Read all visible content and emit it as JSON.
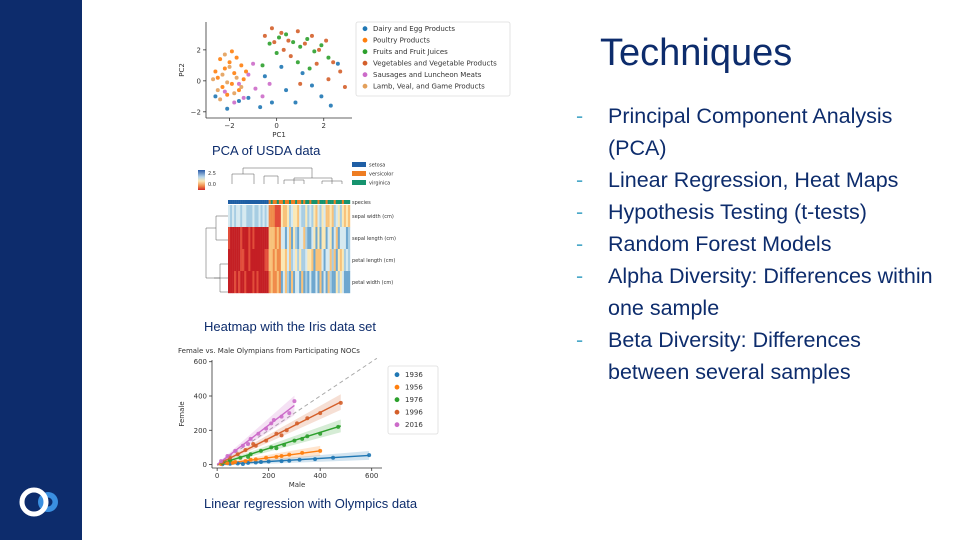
{
  "slide": {
    "title": "Techniques",
    "bullets": [
      {
        "dash": "-",
        "text": "Principal Component Analysis (PCA)"
      },
      {
        "dash": "-",
        "text": "Linear Regression, Heat Maps"
      },
      {
        "dash": "-",
        "text": "Hypothesis Testing (t-tests)"
      },
      {
        "dash": "-",
        "text": "Random Forest Models"
      },
      {
        "dash": "-",
        "text": "Alpha Diversity: Differences within one sample"
      },
      {
        "dash": "-",
        "text": "Beta Diversity: Differences between several samples"
      }
    ],
    "captions": {
      "pca": "PCA of USDA data",
      "heatmap": "Heatmap with the Iris data set",
      "regression": "Linear regression with Olympics data"
    },
    "colors": {
      "sidebar": "#0d2c6c",
      "text": "#0d2c6c",
      "dash": "#4aa8c8"
    },
    "logo_icon": "double-ring-logo-icon"
  },
  "chart_data": [
    {
      "type": "scatter",
      "xlabel": "PC1",
      "ylabel": "PC2",
      "xlim": [
        -3,
        3.2
      ],
      "ylim": [
        -2.4,
        3.8
      ],
      "xticks": [
        -2,
        0,
        2
      ],
      "yticks": [
        -2,
        0,
        2
      ],
      "legend": "right",
      "series": [
        {
          "name": "Dairy and Egg Products",
          "color": "#1f77b4",
          "points": [
            [
              -2.6,
              -1.0
            ],
            [
              -2.1,
              -1.8
            ],
            [
              -1.6,
              -1.3
            ],
            [
              -1.2,
              -1.1
            ],
            [
              -0.7,
              -1.7
            ],
            [
              -0.2,
              -1.4
            ],
            [
              0.4,
              -0.6
            ],
            [
              0.8,
              -1.4
            ],
            [
              1.5,
              -0.3
            ],
            [
              1.9,
              -1.0
            ],
            [
              2.3,
              -1.6
            ],
            [
              -0.5,
              0.3
            ],
            [
              0.2,
              0.9
            ],
            [
              1.1,
              0.5
            ],
            [
              2.6,
              1.1
            ]
          ]
        },
        {
          "name": "Poultry Products",
          "color": "#ff7f0e",
          "points": [
            [
              -2.5,
              0.2
            ],
            [
              -2.3,
              -0.4
            ],
            [
              -2.2,
              0.8
            ],
            [
              -2.0,
              1.2
            ],
            [
              -1.9,
              -0.2
            ],
            [
              -1.8,
              0.5
            ],
            [
              -1.7,
              1.5
            ],
            [
              -1.6,
              -0.6
            ],
            [
              -1.5,
              1.0
            ],
            [
              -1.4,
              0.1
            ],
            [
              -2.4,
              1.4
            ],
            [
              -2.1,
              -0.9
            ],
            [
              -1.3,
              0.6
            ],
            [
              -1.9,
              1.9
            ],
            [
              -2.6,
              0.6
            ]
          ]
        },
        {
          "name": "Fruits and Fruit Juices",
          "color": "#2ca02c",
          "points": [
            [
              -0.3,
              2.4
            ],
            [
              0.1,
              2.8
            ],
            [
              0.4,
              3.0
            ],
            [
              0.7,
              2.5
            ],
            [
              1.0,
              2.2
            ],
            [
              1.3,
              2.7
            ],
            [
              1.6,
              1.9
            ],
            [
              1.9,
              2.3
            ],
            [
              2.2,
              1.5
            ],
            [
              0.9,
              1.2
            ],
            [
              0.0,
              1.8
            ],
            [
              -0.6,
              1.0
            ],
            [
              1.4,
              0.8
            ]
          ]
        },
        {
          "name": "Vegetables and Vegetable Products",
          "color": "#d45f2a",
          "points": [
            [
              -0.5,
              2.9
            ],
            [
              -0.2,
              3.4
            ],
            [
              0.2,
              3.1
            ],
            [
              0.5,
              2.6
            ],
            [
              0.9,
              3.2
            ],
            [
              1.2,
              2.4
            ],
            [
              1.5,
              2.9
            ],
            [
              1.8,
              2.0
            ],
            [
              2.1,
              2.6
            ],
            [
              2.4,
              1.2
            ],
            [
              2.7,
              0.6
            ],
            [
              2.9,
              -0.4
            ],
            [
              0.6,
              1.6
            ],
            [
              1.7,
              1.1
            ],
            [
              0.3,
              2.0
            ],
            [
              2.2,
              0.1
            ],
            [
              -0.1,
              2.5
            ],
            [
              1.0,
              -0.2
            ]
          ]
        },
        {
          "name": "Sausages and Luncheon Meats",
          "color": "#cc6bc9",
          "points": [
            [
              -2.2,
              -0.7
            ],
            [
              -1.6,
              -0.2
            ],
            [
              -1.2,
              0.4
            ],
            [
              -0.9,
              -0.5
            ],
            [
              -0.6,
              -1.0
            ],
            [
              -1.0,
              1.1
            ],
            [
              -1.4,
              -1.1
            ],
            [
              -0.3,
              -0.2
            ],
            [
              -1.8,
              -1.4
            ]
          ]
        },
        {
          "name": "Lamb, Veal, and Game Products",
          "color": "#e3a05b",
          "points": [
            [
              -2.7,
              0.1
            ],
            [
              -2.5,
              -0.6
            ],
            [
              -2.3,
              0.4
            ],
            [
              -2.1,
              -0.1
            ],
            [
              -2.0,
              0.9
            ],
            [
              -1.8,
              -0.8
            ],
            [
              -1.7,
              0.2
            ],
            [
              -2.4,
              -1.2
            ],
            [
              -1.5,
              -0.4
            ],
            [
              -2.2,
              1.7
            ]
          ]
        }
      ]
    },
    {
      "type": "heatmap",
      "colorbar_ticks": [
        "2.5",
        "0.0"
      ],
      "legend_entries": [
        {
          "name": "setosa",
          "color": "#1f5fa5"
        },
        {
          "name": "versicolor",
          "color": "#ee7d22"
        },
        {
          "name": "virginica",
          "color": "#16936e"
        }
      ],
      "row_labels": [
        "species",
        "sepal width (cm)",
        "sepal length (cm)",
        "petal length (cm)",
        "petal width (cm)"
      ]
    },
    {
      "type": "scatter",
      "title": "Female vs. Male Olympians from Participating NOCs",
      "xlabel": "Male",
      "ylabel": "Female",
      "xlim": [
        -20,
        640
      ],
      "ylim": [
        -20,
        610
      ],
      "xticks": [
        0,
        200,
        400,
        600
      ],
      "yticks": [
        0,
        200,
        400,
        600
      ],
      "legend": "right",
      "diagonal": [
        [
          0,
          0
        ],
        [
          620,
          620
        ]
      ],
      "series": [
        {
          "name": "1936",
          "color": "#1f77b4",
          "slope": 0.09,
          "fit_xmax": 590,
          "points": [
            [
              20,
              2
            ],
            [
              50,
              5
            ],
            [
              80,
              6
            ],
            [
              120,
              10
            ],
            [
              150,
              12
            ],
            [
              200,
              18
            ],
            [
              250,
              20
            ],
            [
              320,
              28
            ],
            [
              380,
              32
            ],
            [
              450,
              40
            ],
            [
              590,
              55
            ],
            [
              100,
              3
            ],
            [
              170,
              15
            ],
            [
              280,
              22
            ]
          ]
        },
        {
          "name": "1956",
          "color": "#ff7f0e",
          "slope": 0.2,
          "fit_xmax": 400,
          "points": [
            [
              15,
              3
            ],
            [
              40,
              8
            ],
            [
              70,
              15
            ],
            [
              110,
              20
            ],
            [
              150,
              30
            ],
            [
              190,
              40
            ],
            [
              230,
              45
            ],
            [
              280,
              58
            ],
            [
              330,
              68
            ],
            [
              400,
              80
            ],
            [
              60,
              10
            ],
            [
              130,
              28
            ],
            [
              250,
              50
            ]
          ]
        },
        {
          "name": "1976",
          "color": "#2ca02c",
          "slope": 0.47,
          "fit_xmax": 480,
          "points": [
            [
              20,
              10
            ],
            [
              50,
              25
            ],
            [
              90,
              40
            ],
            [
              130,
              60
            ],
            [
              170,
              80
            ],
            [
              210,
              100
            ],
            [
              260,
              115
            ],
            [
              300,
              140
            ],
            [
              350,
              165
            ],
            [
              400,
              180
            ],
            [
              470,
              220
            ],
            [
              120,
              45
            ],
            [
              230,
              95
            ],
            [
              330,
              150
            ]
          ]
        },
        {
          "name": "1996",
          "color": "#d45f2a",
          "slope": 0.76,
          "fit_xmax": 480,
          "points": [
            [
              20,
              15
            ],
            [
              50,
              40
            ],
            [
              80,
              60
            ],
            [
              110,
              85
            ],
            [
              150,
              110
            ],
            [
              190,
              140
            ],
            [
              230,
              180
            ],
            [
              270,
              200
            ],
            [
              310,
              240
            ],
            [
              350,
              270
            ],
            [
              400,
              300
            ],
            [
              480,
              360
            ],
            [
              140,
              120
            ],
            [
              250,
              170
            ]
          ]
        },
        {
          "name": "2016",
          "color": "#cc6bc9",
          "slope": 1.15,
          "fit_xmax": 300,
          "points": [
            [
              15,
              20
            ],
            [
              40,
              50
            ],
            [
              70,
              80
            ],
            [
              100,
              110
            ],
            [
              130,
              150
            ],
            [
              160,
              180
            ],
            [
              190,
              210
            ],
            [
              220,
              260
            ],
            [
              250,
              280
            ],
            [
              280,
              300
            ],
            [
              300,
              370
            ],
            [
              120,
              120
            ],
            [
              210,
              240
            ]
          ]
        }
      ]
    }
  ]
}
